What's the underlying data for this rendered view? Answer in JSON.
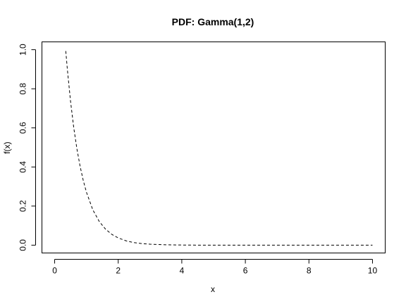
{
  "chart_data": {
    "type": "line",
    "title": "PDF: Gamma(1,2)",
    "xlabel": "x",
    "ylabel": "f(x)",
    "xlim": [
      -0.4,
      10.4
    ],
    "ylim": [
      -0.04,
      1.04
    ],
    "x_ticks": [
      0,
      2,
      4,
      6,
      8,
      10
    ],
    "x_tick_labels": [
      "0",
      "2",
      "4",
      "6",
      "8",
      "10"
    ],
    "y_ticks": [
      0.0,
      0.2,
      0.4,
      0.6,
      0.8,
      1.0
    ],
    "y_tick_labels": [
      "0.0",
      "0.2",
      "0.4",
      "0.6",
      "0.8",
      "1.0"
    ],
    "grid": false,
    "series": [
      {
        "line_style": "dashed",
        "color": "#000000",
        "x": [
          0.35,
          0.4,
          0.5,
          0.6,
          0.7,
          0.8,
          0.9,
          1.0,
          1.2,
          1.4,
          1.6,
          1.8,
          2.0,
          2.25,
          2.5,
          2.75,
          3.0,
          3.5,
          4.0,
          4.5,
          5.0,
          6.0,
          7.0,
          8.0,
          9.0,
          10.0
        ],
        "y": [
          0.993,
          0.899,
          0.736,
          0.602,
          0.493,
          0.404,
          0.331,
          0.271,
          0.181,
          0.122,
          0.082,
          0.055,
          0.037,
          0.022,
          0.013,
          0.008,
          0.005,
          0.002,
          0.0007,
          0.0002,
          0.0001,
          0.0,
          0.0,
          0.0,
          0.0,
          0.0
        ]
      }
    ]
  }
}
